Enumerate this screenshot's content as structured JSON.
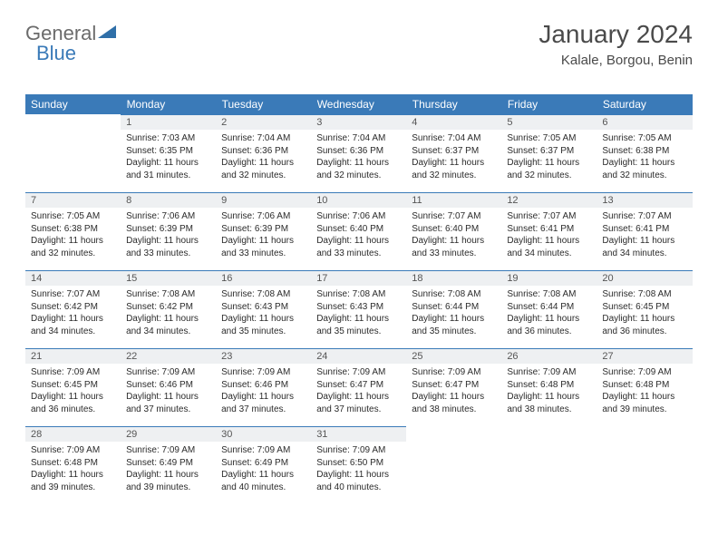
{
  "logo": {
    "part1": "General",
    "part2": "Blue"
  },
  "header": {
    "title": "January 2024",
    "location": "Kalale, Borgou, Benin"
  },
  "colors": {
    "header_bg": "#3a7ab8",
    "header_text": "#ffffff",
    "daynum_bg": "#eef0f2",
    "row_divider": "#3a7ab8",
    "body_text": "#2b2b2b",
    "title_text": "#4a4a4a"
  },
  "weekdays": [
    "Sunday",
    "Monday",
    "Tuesday",
    "Wednesday",
    "Thursday",
    "Friday",
    "Saturday"
  ],
  "first_weekday_index": 1,
  "days": [
    {
      "n": 1,
      "sunrise": "7:03 AM",
      "sunset": "6:35 PM",
      "daylight": "11 hours and 31 minutes."
    },
    {
      "n": 2,
      "sunrise": "7:04 AM",
      "sunset": "6:36 PM",
      "daylight": "11 hours and 32 minutes."
    },
    {
      "n": 3,
      "sunrise": "7:04 AM",
      "sunset": "6:36 PM",
      "daylight": "11 hours and 32 minutes."
    },
    {
      "n": 4,
      "sunrise": "7:04 AM",
      "sunset": "6:37 PM",
      "daylight": "11 hours and 32 minutes."
    },
    {
      "n": 5,
      "sunrise": "7:05 AM",
      "sunset": "6:37 PM",
      "daylight": "11 hours and 32 minutes."
    },
    {
      "n": 6,
      "sunrise": "7:05 AM",
      "sunset": "6:38 PM",
      "daylight": "11 hours and 32 minutes."
    },
    {
      "n": 7,
      "sunrise": "7:05 AM",
      "sunset": "6:38 PM",
      "daylight": "11 hours and 32 minutes."
    },
    {
      "n": 8,
      "sunrise": "7:06 AM",
      "sunset": "6:39 PM",
      "daylight": "11 hours and 33 minutes."
    },
    {
      "n": 9,
      "sunrise": "7:06 AM",
      "sunset": "6:39 PM",
      "daylight": "11 hours and 33 minutes."
    },
    {
      "n": 10,
      "sunrise": "7:06 AM",
      "sunset": "6:40 PM",
      "daylight": "11 hours and 33 minutes."
    },
    {
      "n": 11,
      "sunrise": "7:07 AM",
      "sunset": "6:40 PM",
      "daylight": "11 hours and 33 minutes."
    },
    {
      "n": 12,
      "sunrise": "7:07 AM",
      "sunset": "6:41 PM",
      "daylight": "11 hours and 34 minutes."
    },
    {
      "n": 13,
      "sunrise": "7:07 AM",
      "sunset": "6:41 PM",
      "daylight": "11 hours and 34 minutes."
    },
    {
      "n": 14,
      "sunrise": "7:07 AM",
      "sunset": "6:42 PM",
      "daylight": "11 hours and 34 minutes."
    },
    {
      "n": 15,
      "sunrise": "7:08 AM",
      "sunset": "6:42 PM",
      "daylight": "11 hours and 34 minutes."
    },
    {
      "n": 16,
      "sunrise": "7:08 AM",
      "sunset": "6:43 PM",
      "daylight": "11 hours and 35 minutes."
    },
    {
      "n": 17,
      "sunrise": "7:08 AM",
      "sunset": "6:43 PM",
      "daylight": "11 hours and 35 minutes."
    },
    {
      "n": 18,
      "sunrise": "7:08 AM",
      "sunset": "6:44 PM",
      "daylight": "11 hours and 35 minutes."
    },
    {
      "n": 19,
      "sunrise": "7:08 AM",
      "sunset": "6:44 PM",
      "daylight": "11 hours and 36 minutes."
    },
    {
      "n": 20,
      "sunrise": "7:08 AM",
      "sunset": "6:45 PM",
      "daylight": "11 hours and 36 minutes."
    },
    {
      "n": 21,
      "sunrise": "7:09 AM",
      "sunset": "6:45 PM",
      "daylight": "11 hours and 36 minutes."
    },
    {
      "n": 22,
      "sunrise": "7:09 AM",
      "sunset": "6:46 PM",
      "daylight": "11 hours and 37 minutes."
    },
    {
      "n": 23,
      "sunrise": "7:09 AM",
      "sunset": "6:46 PM",
      "daylight": "11 hours and 37 minutes."
    },
    {
      "n": 24,
      "sunrise": "7:09 AM",
      "sunset": "6:47 PM",
      "daylight": "11 hours and 37 minutes."
    },
    {
      "n": 25,
      "sunrise": "7:09 AM",
      "sunset": "6:47 PM",
      "daylight": "11 hours and 38 minutes."
    },
    {
      "n": 26,
      "sunrise": "7:09 AM",
      "sunset": "6:48 PM",
      "daylight": "11 hours and 38 minutes."
    },
    {
      "n": 27,
      "sunrise": "7:09 AM",
      "sunset": "6:48 PM",
      "daylight": "11 hours and 39 minutes."
    },
    {
      "n": 28,
      "sunrise": "7:09 AM",
      "sunset": "6:48 PM",
      "daylight": "11 hours and 39 minutes."
    },
    {
      "n": 29,
      "sunrise": "7:09 AM",
      "sunset": "6:49 PM",
      "daylight": "11 hours and 39 minutes."
    },
    {
      "n": 30,
      "sunrise": "7:09 AM",
      "sunset": "6:49 PM",
      "daylight": "11 hours and 40 minutes."
    },
    {
      "n": 31,
      "sunrise": "7:09 AM",
      "sunset": "6:50 PM",
      "daylight": "11 hours and 40 minutes."
    }
  ],
  "labels": {
    "sunrise": "Sunrise:",
    "sunset": "Sunset:",
    "daylight": "Daylight:"
  }
}
